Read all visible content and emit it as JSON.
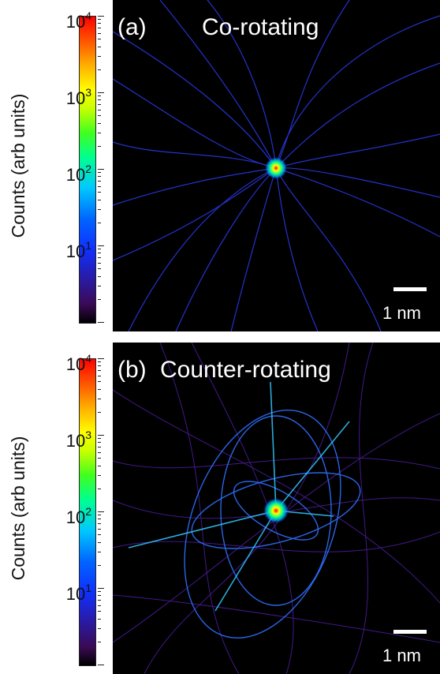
{
  "figure": {
    "colorbar_gradient": [
      "#000000",
      "#3a0a55",
      "#1030ff",
      "#00c8ff",
      "#00ff90",
      "#c8ff00",
      "#ffff00",
      "#ff6000",
      "#ff0000"
    ],
    "background_color": "#000000",
    "panels": [
      {
        "label": "(a)",
        "title": "Co-rotating",
        "ylabel": "Counts (arb units)",
        "colorbar_scale": "log",
        "colorbar_range": [
          1,
          10000
        ],
        "tick_labels": [
          {
            "base": "10",
            "exp": "4"
          },
          {
            "base": "10",
            "exp": "3"
          },
          {
            "base": "10",
            "exp": "2"
          },
          {
            "base": "10",
            "exp": "1"
          }
        ],
        "scale_bar": "1 nm",
        "image_description_icon": "electron-trajectory-density-icon"
      },
      {
        "label": "(b)",
        "title": "Counter-rotating",
        "ylabel": "Counts (arb units)",
        "colorbar_scale": "log",
        "colorbar_range": [
          1,
          10000
        ],
        "tick_labels": [
          {
            "base": "10",
            "exp": "4"
          },
          {
            "base": "10",
            "exp": "3"
          },
          {
            "base": "10",
            "exp": "2"
          },
          {
            "base": "10",
            "exp": "1"
          }
        ],
        "scale_bar": "1 nm",
        "image_description_icon": "electron-trajectory-density-icon"
      }
    ]
  }
}
